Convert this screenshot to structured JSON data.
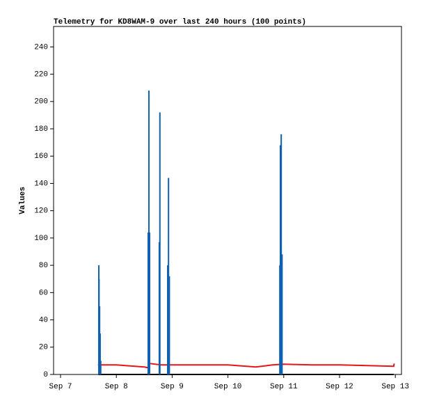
{
  "chart_data": {
    "type": "line",
    "title": "Telemetry for KD8WAM-9 over last 240 hours (100 points)",
    "y_label": "Values",
    "xlim": [
      -0.125,
      6.11
    ],
    "xticks": [
      {
        "value": 0,
        "label": "Sep 7"
      },
      {
        "value": 1,
        "label": "Sep 8"
      },
      {
        "value": 2,
        "label": "Sep 9"
      },
      {
        "value": 3,
        "label": "Sep 10"
      },
      {
        "value": 4,
        "label": "Sep 11"
      },
      {
        "value": 5,
        "label": "Sep 12"
      },
      {
        "value": 6,
        "label": "Sep 13"
      }
    ],
    "ylim": [
      0,
      255
    ],
    "yticks": [
      0,
      20,
      40,
      60,
      80,
      100,
      120,
      140,
      160,
      180,
      200,
      220,
      240
    ],
    "series": [
      {
        "color": "#000000",
        "style": "lines",
        "x": [
          0.68,
          5.97
        ],
        "values": [
          0,
          0
        ]
      },
      {
        "color": "#e8141b",
        "style": "lines",
        "x": [
          0.67,
          1.0,
          1.5,
          1.56,
          1.6,
          1.8,
          2.0,
          3.0,
          3.5,
          3.8,
          4.0,
          4.5,
          5.0,
          5.5,
          5.97,
          5.98
        ],
        "values": [
          7,
          7,
          5.5,
          5,
          8,
          7,
          7,
          7,
          5.5,
          7,
          7.5,
          7,
          7,
          6.5,
          6,
          8
        ]
      },
      {
        "color": "#1060b0",
        "style": "impulses",
        "x": [
          0.686,
          0.69,
          0.7,
          0.71,
          0.72,
          1.571,
          1.584,
          1.596,
          1.77,
          1.78,
          1.92,
          1.935,
          1.95,
          3.93,
          3.94,
          3.955,
          3.97
        ],
        "values": [
          80,
          70,
          50,
          30,
          10,
          104,
          208,
          104,
          97,
          192,
          80,
          144,
          72,
          80,
          168,
          176,
          88
        ]
      }
    ]
  }
}
